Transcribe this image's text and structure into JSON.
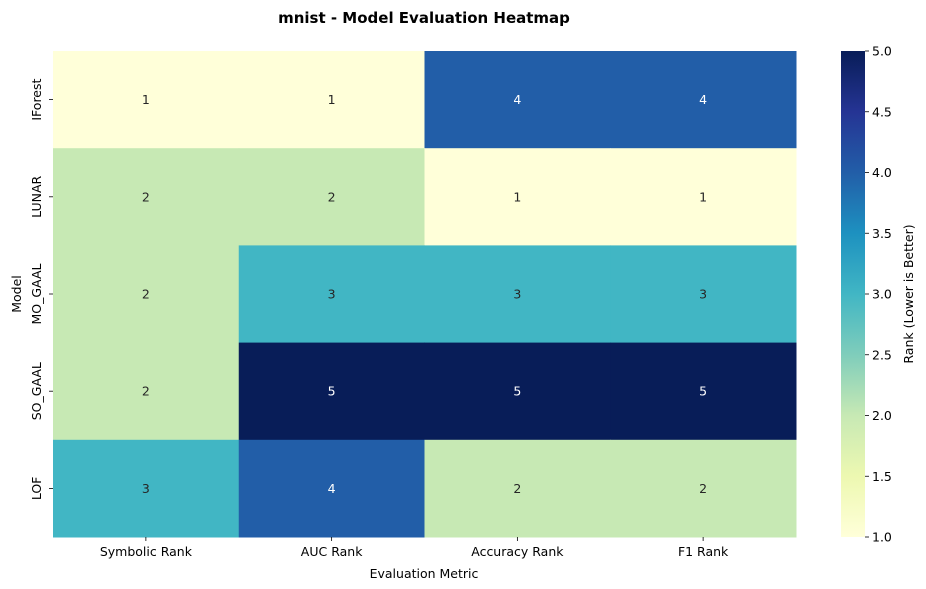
{
  "chart_data": {
    "type": "heatmap",
    "title": "mnist - Model Evaluation Heatmap",
    "xlabel": "Evaluation Metric",
    "ylabel": "Model",
    "x_categories": [
      "Symbolic Rank",
      "AUC Rank",
      "Accuracy Rank",
      "F1 Rank"
    ],
    "y_categories": [
      "IForest",
      "LUNAR",
      "MO_GAAL",
      "SO_GAAL",
      "LOF"
    ],
    "values": [
      [
        1,
        1,
        4,
        4
      ],
      [
        2,
        2,
        1,
        1
      ],
      [
        2,
        3,
        3,
        3
      ],
      [
        2,
        5,
        5,
        5
      ],
      [
        3,
        4,
        2,
        2
      ]
    ],
    "annotations": true,
    "colorbar": {
      "label": "Rank (Lower is Better)",
      "range": [
        1.0,
        5.0
      ],
      "ticks": [
        "1.0",
        "1.5",
        "2.0",
        "2.5",
        "3.0",
        "3.5",
        "4.0",
        "4.5",
        "5.0"
      ],
      "colormap": "YlGnBu"
    },
    "colors": {
      "1": "#ffffd9",
      "2": "#c7e9b4",
      "3": "#41b6c4",
      "4": "#225ea8",
      "5": "#081d58"
    },
    "colormap_stops": [
      "#ffffd9",
      "#edf8b1",
      "#c7e9b4",
      "#7fcdbb",
      "#41b6c4",
      "#1d91c0",
      "#225ea8",
      "#253494",
      "#081d58"
    ],
    "grid": false,
    "legend": "colorbar-right"
  }
}
